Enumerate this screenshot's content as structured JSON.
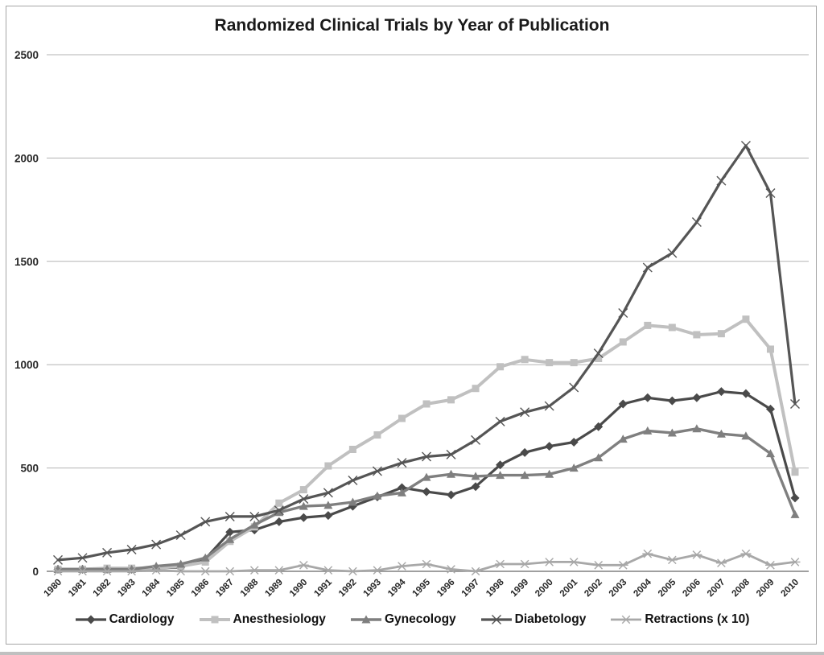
{
  "window": {
    "background": "#ffffff",
    "frame_border_color": "#a6a6a6"
  },
  "chart_data": {
    "type": "line",
    "title": "Randomized Clinical Trials by Year of Publication",
    "xlabel": "",
    "ylabel": "",
    "x_categories": [
      "1980",
      "1981",
      "1982",
      "1983",
      "1984",
      "1985",
      "1986",
      "1987",
      "1988",
      "1989",
      "1990",
      "1991",
      "1992",
      "1993",
      "1994",
      "1995",
      "1996",
      "1997",
      "1998",
      "1999",
      "2000",
      "2001",
      "2002",
      "2003",
      "2004",
      "2005",
      "2006",
      "2007",
      "2008",
      "2009",
      "2010"
    ],
    "y_ticks": [
      0,
      500,
      1000,
      1500,
      2000,
      2500
    ],
    "ylim": [
      0,
      2500
    ],
    "grid": "horizontal-only",
    "legend_position": "bottom",
    "axis_text_color": "#262626",
    "gridline_color": "#b3b3b3",
    "axisline_color": "#808080",
    "series": [
      {
        "name": "Cardiology",
        "marker": "diamond",
        "color": "#4a4a4a",
        "line_width": 3.2,
        "values": [
          10,
          10,
          10,
          10,
          15,
          20,
          60,
          190,
          200,
          240,
          260,
          270,
          315,
          360,
          405,
          385,
          370,
          410,
          515,
          575,
          605,
          625,
          700,
          810,
          840,
          825,
          840,
          870,
          860,
          785,
          355
        ]
      },
      {
        "name": "Anesthesiology",
        "marker": "square",
        "color": "#c0c0c0",
        "line_width": 4,
        "values": [
          10,
          10,
          15,
          15,
          15,
          25,
          45,
          145,
          215,
          330,
          395,
          510,
          590,
          660,
          740,
          810,
          830,
          885,
          990,
          1025,
          1010,
          1010,
          1030,
          1110,
          1190,
          1180,
          1145,
          1150,
          1220,
          1075,
          480
        ]
      },
      {
        "name": "Gynecology",
        "marker": "triangle",
        "color": "#7f7f7f",
        "line_width": 3.4,
        "values": [
          10,
          10,
          10,
          10,
          25,
          35,
          65,
          155,
          225,
          285,
          315,
          320,
          335,
          365,
          380,
          455,
          470,
          460,
          465,
          465,
          470,
          500,
          550,
          640,
          680,
          670,
          690,
          665,
          655,
          570,
          275
        ]
      },
      {
        "name": "Diabetology",
        "marker": "x",
        "color": "#555555",
        "line_width": 3.2,
        "values": [
          55,
          65,
          90,
          105,
          130,
          175,
          240,
          265,
          265,
          295,
          350,
          380,
          440,
          485,
          525,
          555,
          565,
          635,
          725,
          770,
          800,
          890,
          1055,
          1250,
          1470,
          1540,
          1690,
          1890,
          2060,
          1830,
          810
        ]
      },
      {
        "name": "Retractions (x 10)",
        "marker": "asterisk",
        "color": "#a8a8a8",
        "line_width": 2.8,
        "values": [
          0,
          0,
          0,
          0,
          5,
          0,
          0,
          0,
          5,
          5,
          30,
          5,
          0,
          5,
          25,
          35,
          10,
          0,
          35,
          35,
          45,
          45,
          30,
          30,
          85,
          55,
          80,
          40,
          85,
          30,
          45
        ]
      }
    ]
  }
}
